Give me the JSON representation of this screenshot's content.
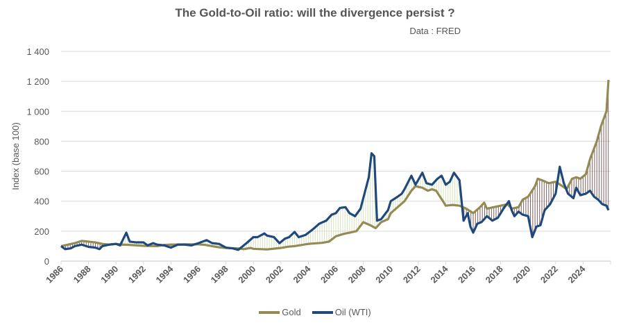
{
  "chart_data": {
    "type": "line",
    "title": "The Gold-to-Oil ratio: will the divergence persist ?",
    "subtitle": "Data : FRED",
    "xlabel": "",
    "ylabel": "Index (base 100)",
    "xlim": [
      1986,
      2026
    ],
    "ylim": [
      0,
      1400
    ],
    "grid": true,
    "legend": "bottom",
    "y_ticks": [
      "0",
      "200",
      "400",
      "600",
      "800",
      "1 000",
      "1 200",
      "1 400"
    ],
    "y_tick_values": [
      0,
      200,
      400,
      600,
      800,
      1000,
      1200,
      1400
    ],
    "x_ticks": [
      "1986",
      "1988",
      "1990",
      "1992",
      "1994",
      "1996",
      "1998",
      "2000",
      "2002",
      "2004",
      "2006",
      "2008",
      "2010",
      "2012",
      "2014",
      "2016",
      "2018",
      "2020",
      "2022",
      "2024"
    ],
    "colors": {
      "gold": "#948a54",
      "oil": "#1f497d",
      "grid": "#d9d9d9",
      "drop_up": "#d7e4bd",
      "drop_down": "#7f5f5f"
    },
    "series": [
      {
        "name": "Gold",
        "points": [
          [
            1986,
            100
          ],
          [
            1986.5,
            110
          ],
          [
            1987,
            120
          ],
          [
            1987.5,
            135
          ],
          [
            1988,
            130
          ],
          [
            1988.5,
            125
          ],
          [
            1989,
            115
          ],
          [
            1989.5,
            110
          ],
          [
            1990,
            115
          ],
          [
            1990.5,
            110
          ],
          [
            1991,
            108
          ],
          [
            1992,
            102
          ],
          [
            1993,
            100
          ],
          [
            1993.5,
            108
          ],
          [
            1994,
            110
          ],
          [
            1995,
            112
          ],
          [
            1996,
            112
          ],
          [
            1996.5,
            108
          ],
          [
            1997,
            100
          ],
          [
            1997.5,
            92
          ],
          [
            1998,
            88
          ],
          [
            1999,
            84
          ],
          [
            1999.3,
            80
          ],
          [
            1999.8,
            88
          ],
          [
            2000,
            82
          ],
          [
            2001,
            78
          ],
          [
            2002,
            88
          ],
          [
            2002.5,
            96
          ],
          [
            2003,
            100
          ],
          [
            2004,
            115
          ],
          [
            2005,
            122
          ],
          [
            2005.5,
            130
          ],
          [
            2006,
            165
          ],
          [
            2006.5,
            180
          ],
          [
            2007,
            190
          ],
          [
            2007.5,
            200
          ],
          [
            2008,
            260
          ],
          [
            2008.5,
            240
          ],
          [
            2008.9,
            220
          ],
          [
            2009.3,
            260
          ],
          [
            2009.8,
            280
          ],
          [
            2010,
            320
          ],
          [
            2010.5,
            360
          ],
          [
            2011,
            400
          ],
          [
            2011.5,
            470
          ],
          [
            2011.8,
            500
          ],
          [
            2012.3,
            490
          ],
          [
            2012.7,
            470
          ],
          [
            2013,
            480
          ],
          [
            2013.3,
            470
          ],
          [
            2013.8,
            400
          ],
          [
            2014,
            370
          ],
          [
            2014.5,
            375
          ],
          [
            2015,
            370
          ],
          [
            2015.5,
            350
          ],
          [
            2016,
            320
          ],
          [
            2016.5,
            360
          ],
          [
            2016.8,
            390
          ],
          [
            2017,
            350
          ],
          [
            2017.5,
            360
          ],
          [
            2018,
            370
          ],
          [
            2018.5,
            380
          ],
          [
            2018.8,
            350
          ],
          [
            2019.3,
            360
          ],
          [
            2019.6,
            410
          ],
          [
            2020,
            430
          ],
          [
            2020.5,
            500
          ],
          [
            2020.7,
            550
          ],
          [
            2021,
            540
          ],
          [
            2021.5,
            520
          ],
          [
            2022,
            530
          ],
          [
            2022.5,
            500
          ],
          [
            2022.8,
            480
          ],
          [
            2023.2,
            550
          ],
          [
            2023.5,
            560
          ],
          [
            2023.8,
            550
          ],
          [
            2024.2,
            580
          ],
          [
            2024.5,
            680
          ],
          [
            2025,
            800
          ],
          [
            2025.3,
            900
          ],
          [
            2025.5,
            950
          ],
          [
            2025.7,
            1000
          ],
          [
            2025.85,
            1210
          ]
        ]
      },
      {
        "name": "Oil (WTI)",
        "points": [
          [
            1986,
            100
          ],
          [
            1986.3,
            80
          ],
          [
            1986.7,
            85
          ],
          [
            1987,
            100
          ],
          [
            1987.5,
            110
          ],
          [
            1988,
            95
          ],
          [
            1988.5,
            90
          ],
          [
            1988.8,
            80
          ],
          [
            1989,
            100
          ],
          [
            1989.5,
            110
          ],
          [
            1990,
            115
          ],
          [
            1990.3,
            105
          ],
          [
            1990.75,
            190
          ],
          [
            1991,
            130
          ],
          [
            1991.5,
            125
          ],
          [
            1992,
            125
          ],
          [
            1992.3,
            105
          ],
          [
            1992.7,
            120
          ],
          [
            1993,
            110
          ],
          [
            1993.5,
            105
          ],
          [
            1994,
            90
          ],
          [
            1994.5,
            110
          ],
          [
            1995,
            110
          ],
          [
            1995.5,
            105
          ],
          [
            1996,
            120
          ],
          [
            1996.6,
            140
          ],
          [
            1997,
            120
          ],
          [
            1997.5,
            115
          ],
          [
            1998,
            90
          ],
          [
            1998.5,
            85
          ],
          [
            1998.9,
            75
          ],
          [
            1999.5,
            120
          ],
          [
            2000,
            160
          ],
          [
            2000.3,
            160
          ],
          [
            2000.8,
            185
          ],
          [
            2001,
            170
          ],
          [
            2001.5,
            160
          ],
          [
            2001.9,
            120
          ],
          [
            2002.3,
            150
          ],
          [
            2002.6,
            160
          ],
          [
            2003,
            195
          ],
          [
            2003.3,
            160
          ],
          [
            2003.8,
            175
          ],
          [
            2004.3,
            210
          ],
          [
            2004.8,
            250
          ],
          [
            2005.3,
            270
          ],
          [
            2005.7,
            310
          ],
          [
            2006,
            320
          ],
          [
            2006.3,
            355
          ],
          [
            2006.7,
            360
          ],
          [
            2007,
            320
          ],
          [
            2007.4,
            300
          ],
          [
            2007.8,
            350
          ],
          [
            2008,
            420
          ],
          [
            2008.4,
            560
          ],
          [
            2008.6,
            720
          ],
          [
            2008.8,
            700
          ],
          [
            2009,
            270
          ],
          [
            2009.3,
            280
          ],
          [
            2009.8,
            340
          ],
          [
            2010,
            400
          ],
          [
            2010.5,
            430
          ],
          [
            2010.8,
            450
          ],
          [
            2011,
            480
          ],
          [
            2011.5,
            570
          ],
          [
            2011.8,
            510
          ],
          [
            2012.3,
            590
          ],
          [
            2012.6,
            520
          ],
          [
            2013,
            510
          ],
          [
            2013.4,
            550
          ],
          [
            2013.7,
            570
          ],
          [
            2014,
            510
          ],
          [
            2014.3,
            530
          ],
          [
            2014.6,
            590
          ],
          [
            2015,
            540
          ],
          [
            2015.3,
            270
          ],
          [
            2015.6,
            320
          ],
          [
            2015.8,
            230
          ],
          [
            2016,
            190
          ],
          [
            2016.3,
            250
          ],
          [
            2016.6,
            260
          ],
          [
            2017,
            300
          ],
          [
            2017.4,
            270
          ],
          [
            2017.8,
            290
          ],
          [
            2018.2,
            350
          ],
          [
            2018.6,
            400
          ],
          [
            2018.8,
            340
          ],
          [
            2019,
            300
          ],
          [
            2019.3,
            330
          ],
          [
            2019.6,
            310
          ],
          [
            2020,
            300
          ],
          [
            2020.3,
            160
          ],
          [
            2020.6,
            230
          ],
          [
            2020.9,
            240
          ],
          [
            2021.2,
            340
          ],
          [
            2021.6,
            380
          ],
          [
            2022,
            450
          ],
          [
            2022.3,
            630
          ],
          [
            2022.6,
            520
          ],
          [
            2022.9,
            450
          ],
          [
            2023.3,
            420
          ],
          [
            2023.5,
            490
          ],
          [
            2023.8,
            440
          ],
          [
            2024.2,
            450
          ],
          [
            2024.5,
            470
          ],
          [
            2024.8,
            430
          ],
          [
            2025.1,
            410
          ],
          [
            2025.4,
            380
          ],
          [
            2025.7,
            370
          ],
          [
            2025.85,
            340
          ]
        ]
      }
    ]
  }
}
